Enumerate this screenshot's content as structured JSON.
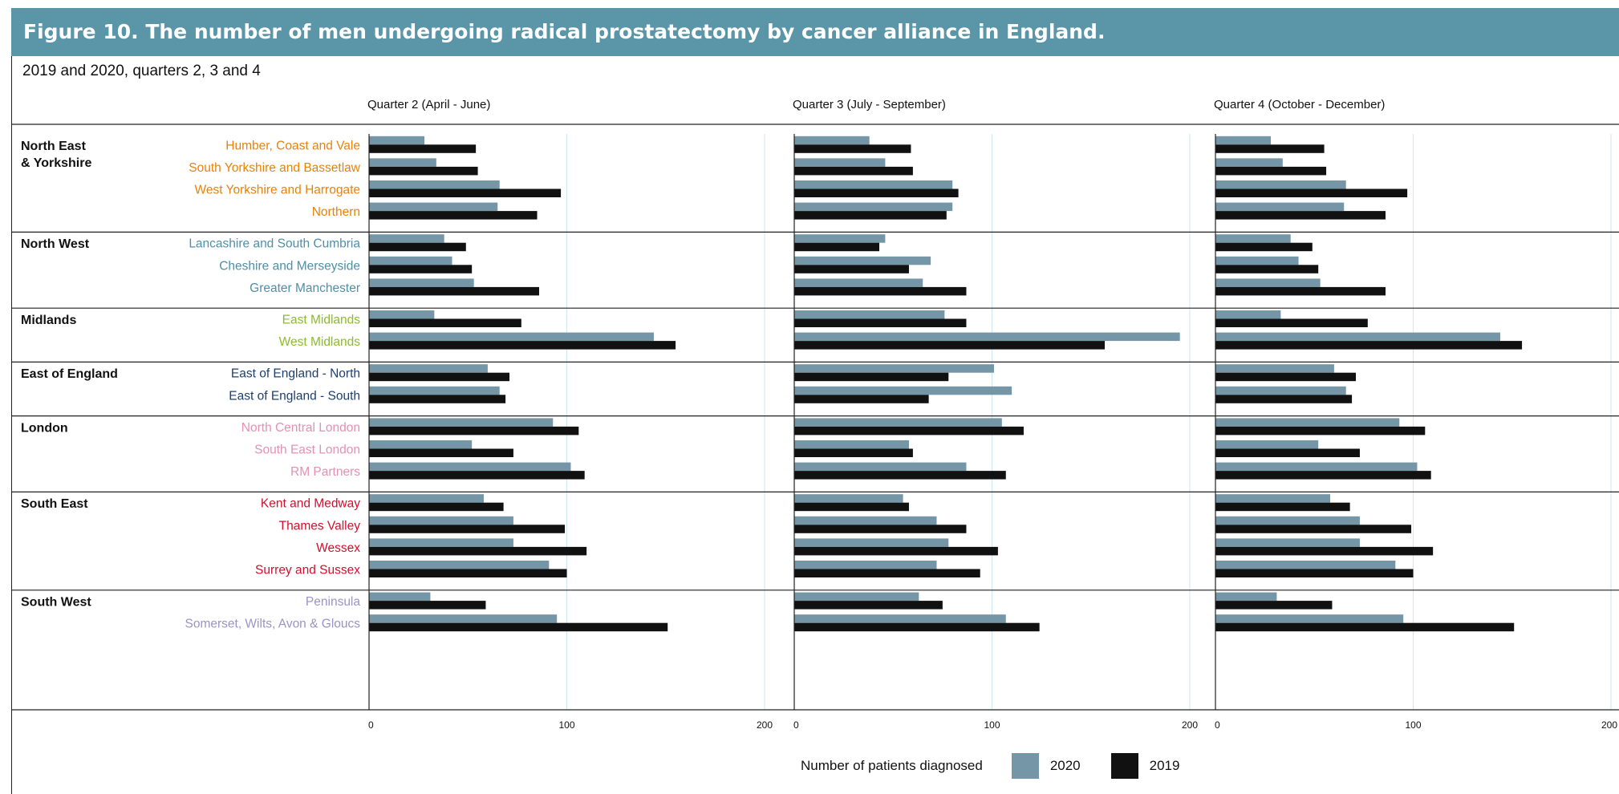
{
  "figure": {
    "title": "Figure 10. The number of men undergoing radical prostatectomy by cancer alliance in England.",
    "subtitle": "2019 and 2020, quarters 2, 3 and 4"
  },
  "colors": {
    "header": "#5b95a8",
    "series_2020": "#7596a6",
    "series_2019": "#111111",
    "gridline": "#cfe6f5"
  },
  "chart_data": {
    "type": "bar",
    "orientation": "horizontal",
    "xlabel": "Number of patients diagnosed",
    "xlim": [
      0,
      200
    ],
    "xticks": [
      0,
      100,
      200
    ],
    "legend": {
      "placement": "bottom-center",
      "entries": [
        "2020",
        "2019"
      ]
    },
    "panels": [
      {
        "title": "Quarter 2 (April - June)"
      },
      {
        "title": "Quarter 3 (July - September)"
      },
      {
        "title": "Quarter 4 (October - December)"
      }
    ],
    "series": [
      {
        "name": "2020",
        "color": "#7596a6"
      },
      {
        "name": "2019",
        "color": "#111111"
      }
    ],
    "regions": [
      {
        "name": "North East & Yorkshire",
        "color": "#e8820a",
        "alliances": [
          {
            "name": "Humber, Coast and Vale",
            "values": [
              [
                28,
                54
              ],
              [
                38,
                59
              ],
              [
                28,
                55
              ]
            ]
          },
          {
            "name": "South Yorkshire and Bassetlaw",
            "values": [
              [
                34,
                55
              ],
              [
                46,
                60
              ],
              [
                34,
                56
              ]
            ]
          },
          {
            "name": "West Yorkshire and Harrogate",
            "values": [
              [
                66,
                97
              ],
              [
                80,
                83
              ],
              [
                66,
                97
              ]
            ]
          },
          {
            "name": "Northern",
            "values": [
              [
                65,
                85
              ],
              [
                80,
                77
              ],
              [
                65,
                86
              ]
            ]
          }
        ]
      },
      {
        "name": "North West",
        "color": "#4d90a8",
        "alliances": [
          {
            "name": "Lancashire and South Cumbria",
            "values": [
              [
                38,
                49
              ],
              [
                46,
                43
              ],
              [
                38,
                49
              ]
            ]
          },
          {
            "name": "Cheshire and Merseyside",
            "values": [
              [
                42,
                52
              ],
              [
                69,
                58
              ],
              [
                42,
                52
              ]
            ]
          },
          {
            "name": "Greater Manchester",
            "values": [
              [
                53,
                86
              ],
              [
                65,
                87
              ],
              [
                53,
                86
              ]
            ]
          }
        ]
      },
      {
        "name": "Midlands",
        "color": "#8dbb2d",
        "alliances": [
          {
            "name": "East Midlands",
            "values": [
              [
                33,
                77
              ],
              [
                76,
                87
              ],
              [
                33,
                77
              ]
            ]
          },
          {
            "name": "West Midlands",
            "values": [
              [
                144,
                155
              ],
              [
                195,
                157
              ],
              [
                144,
                155
              ]
            ]
          }
        ]
      },
      {
        "name": "East of England",
        "color": "#1d3f6e",
        "alliances": [
          {
            "name": "East of England - North",
            "values": [
              [
                60,
                71
              ],
              [
                101,
                78
              ],
              [
                60,
                71
              ]
            ]
          },
          {
            "name": "East of England - South",
            "values": [
              [
                66,
                69
              ],
              [
                110,
                68
              ],
              [
                66,
                69
              ]
            ]
          }
        ]
      },
      {
        "name": "London",
        "color": "#e590b3",
        "alliances": [
          {
            "name": "North Central London",
            "values": [
              [
                93,
                106
              ],
              [
                105,
                116
              ],
              [
                93,
                106
              ]
            ]
          },
          {
            "name": "South East London",
            "values": [
              [
                52,
                73
              ],
              [
                58,
                60
              ],
              [
                52,
                73
              ]
            ]
          },
          {
            "name": "RM Partners",
            "values": [
              [
                102,
                109
              ],
              [
                87,
                107
              ],
              [
                102,
                109
              ]
            ]
          }
        ]
      },
      {
        "name": "South East",
        "color": "#d0102e",
        "alliances": [
          {
            "name": "Kent and Medway",
            "values": [
              [
                58,
                68
              ],
              [
                55,
                58
              ],
              [
                58,
                68
              ]
            ]
          },
          {
            "name": "Thames Valley",
            "values": [
              [
                73,
                99
              ],
              [
                72,
                87
              ],
              [
                73,
                99
              ]
            ]
          },
          {
            "name": "Wessex",
            "values": [
              [
                73,
                110
              ],
              [
                78,
                103
              ],
              [
                73,
                110
              ]
            ]
          },
          {
            "name": "Surrey and Sussex",
            "values": [
              [
                91,
                100
              ],
              [
                72,
                94
              ],
              [
                91,
                100
              ]
            ]
          }
        ]
      },
      {
        "name": "South West",
        "color": "#9b92c8",
        "alliances": [
          {
            "name": "Peninsula",
            "values": [
              [
                31,
                59
              ],
              [
                63,
                75
              ],
              [
                31,
                59
              ]
            ]
          },
          {
            "name": "Somerset, Wilts, Avon & Gloucs",
            "values": [
              [
                95,
                151
              ],
              [
                107,
                124
              ],
              [
                95,
                151
              ]
            ]
          }
        ]
      }
    ]
  }
}
